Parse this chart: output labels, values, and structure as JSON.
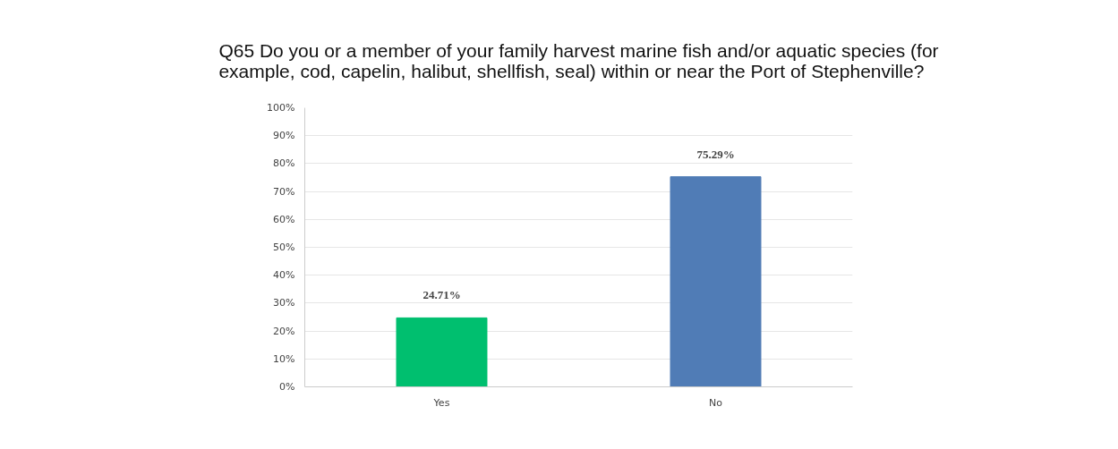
{
  "chart_data": {
    "type": "bar",
    "title": "Q65 Do you or a member of your family harvest marine fish and/or aquatic species (for\nexample, cod, capelin, halibut, shellfish, seal) within or near the Port of Stephenville?",
    "categories": [
      "Yes",
      "No"
    ],
    "values": [
      24.71,
      75.29
    ],
    "colors": [
      "#00bf6f",
      "#507cb6"
    ],
    "value_labels": [
      "24.71%",
      "75.29%"
    ],
    "ylim": [
      0,
      100
    ],
    "yticks": [
      {
        "value": 0,
        "label": "0%"
      },
      {
        "value": 10,
        "label": "10%"
      },
      {
        "value": 20,
        "label": "20%"
      },
      {
        "value": 30,
        "label": "30%"
      },
      {
        "value": 40,
        "label": "40%"
      },
      {
        "value": 50,
        "label": "50%"
      },
      {
        "value": 60,
        "label": "60%"
      },
      {
        "value": 70,
        "label": "70%"
      },
      {
        "value": 80,
        "label": "80%"
      },
      {
        "value": 90,
        "label": "90%"
      },
      {
        "value": 100,
        "label": "100%"
      }
    ],
    "grid": "y"
  }
}
